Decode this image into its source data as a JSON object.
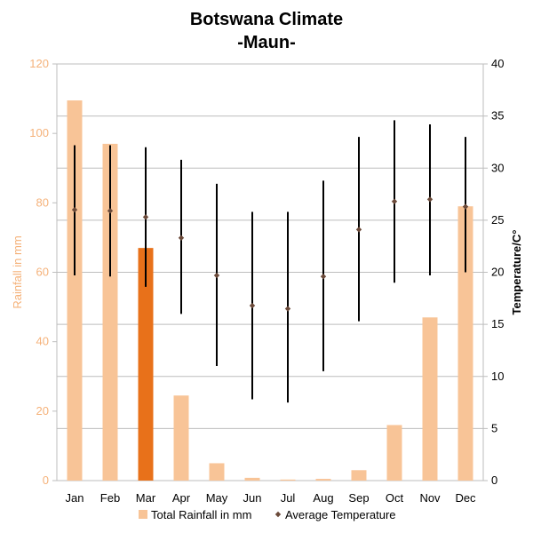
{
  "chart_data": {
    "type": "bar",
    "title": "Botswana Climate",
    "subtitle": "-Maun-",
    "categories": [
      "Jan",
      "Feb",
      "Mar",
      "Apr",
      "May",
      "Jun",
      "Jul",
      "Aug",
      "Sep",
      "Oct",
      "Nov",
      "Dec"
    ],
    "highlight_category": "Mar",
    "left_axis": {
      "label": "Rainfall in mm",
      "ylim": [
        0,
        120
      ],
      "ticks": [
        0,
        20,
        40,
        60,
        80,
        100,
        120
      ],
      "color": "#f5b27a"
    },
    "right_axis": {
      "label": "Temperature/C°",
      "ylim": [
        0,
        40
      ],
      "ticks": [
        0,
        5,
        10,
        15,
        20,
        25,
        30,
        35,
        40
      ],
      "color": "#000000"
    },
    "series": [
      {
        "name": "Total Rainfall in mm",
        "type": "bar",
        "axis": "left",
        "values": [
          109.5,
          97,
          67,
          24.5,
          5,
          0.8,
          0.3,
          0.5,
          3,
          16,
          47,
          79
        ],
        "color": "#f8c497",
        "highlight_color": "#e8711a"
      },
      {
        "name": "Average Temperature",
        "type": "scatter-range",
        "axis": "right",
        "values": [
          26,
          25.9,
          25.3,
          23.3,
          19.7,
          16.8,
          16.5,
          19.6,
          24.1,
          26.8,
          27,
          26.3
        ],
        "min": [
          19.7,
          19.6,
          18.6,
          16,
          11,
          7.8,
          7.5,
          10.5,
          15.3,
          19,
          19.7,
          20
        ],
        "max": [
          32.2,
          32.2,
          32,
          30.8,
          28.5,
          25.8,
          25.8,
          28.8,
          33,
          34.6,
          34.2,
          33
        ],
        "marker_color": "#6b4a3a",
        "range_color": "#000000"
      }
    ],
    "grid": true,
    "legend": "bottom"
  }
}
